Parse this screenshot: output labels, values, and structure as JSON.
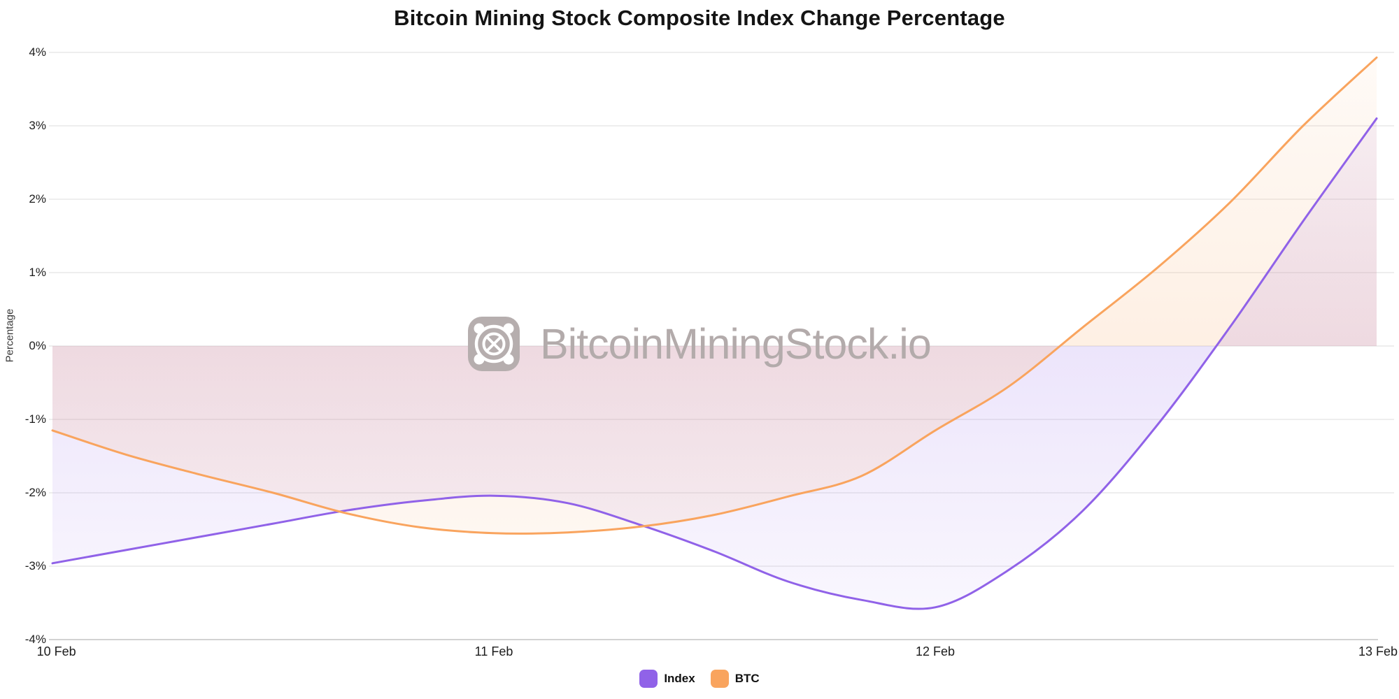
{
  "title": "Bitcoin Mining Stock Composite Index Change Percentage",
  "watermark": {
    "text": "BitcoinMiningStock.io",
    "logo_icon": "asic-miner-fan-logo"
  },
  "chart_data": {
    "type": "area",
    "title": "Bitcoin Mining Stock Composite Index Change Percentage",
    "xlabel": "",
    "ylabel": "Percentage",
    "ylim": [
      -4,
      4
    ],
    "grid": "horizontal",
    "legend_position": "bottom-center",
    "y_tick_labels": [
      "4%",
      "3%",
      "2%",
      "1%",
      "0%",
      "-1%",
      "-2%",
      "-3%",
      "-4%"
    ],
    "x_tick_labels": [
      "10 Feb",
      "11 Feb",
      "12 Feb",
      "13 Feb"
    ],
    "x_tick_positions_days": [
      0,
      1,
      2,
      3
    ],
    "x_unit": "days since 10 Feb (4-hour sampling)",
    "x": [
      0,
      0.1667,
      0.3333,
      0.5,
      0.6667,
      0.8333,
      1,
      1.1667,
      1.3333,
      1.5,
      1.6667,
      1.8333,
      2,
      2.1667,
      2.3333,
      2.5,
      2.6667,
      2.8333,
      3
    ],
    "series": [
      {
        "name": "Index",
        "color": "#9062E8",
        "fill": "gradient-to-zero-baseline",
        "values": [
          -2.96,
          -2.78,
          -2.6,
          -2.42,
          -2.24,
          -2.11,
          -2.04,
          -2.14,
          -2.44,
          -2.8,
          -3.21,
          -3.46,
          -3.56,
          -3.05,
          -2.25,
          -1.1,
          0.25,
          1.7,
          3.1
        ]
      },
      {
        "name": "BTC",
        "color": "#F9A45E",
        "fill": "gradient-to-zero-baseline",
        "values": [
          -1.15,
          -1.48,
          -1.75,
          -2.0,
          -2.28,
          -2.47,
          -2.55,
          -2.54,
          -2.46,
          -2.3,
          -2.05,
          -1.77,
          -1.15,
          -0.55,
          0.25,
          1.05,
          1.95,
          3.0,
          3.93
        ]
      }
    ]
  }
}
